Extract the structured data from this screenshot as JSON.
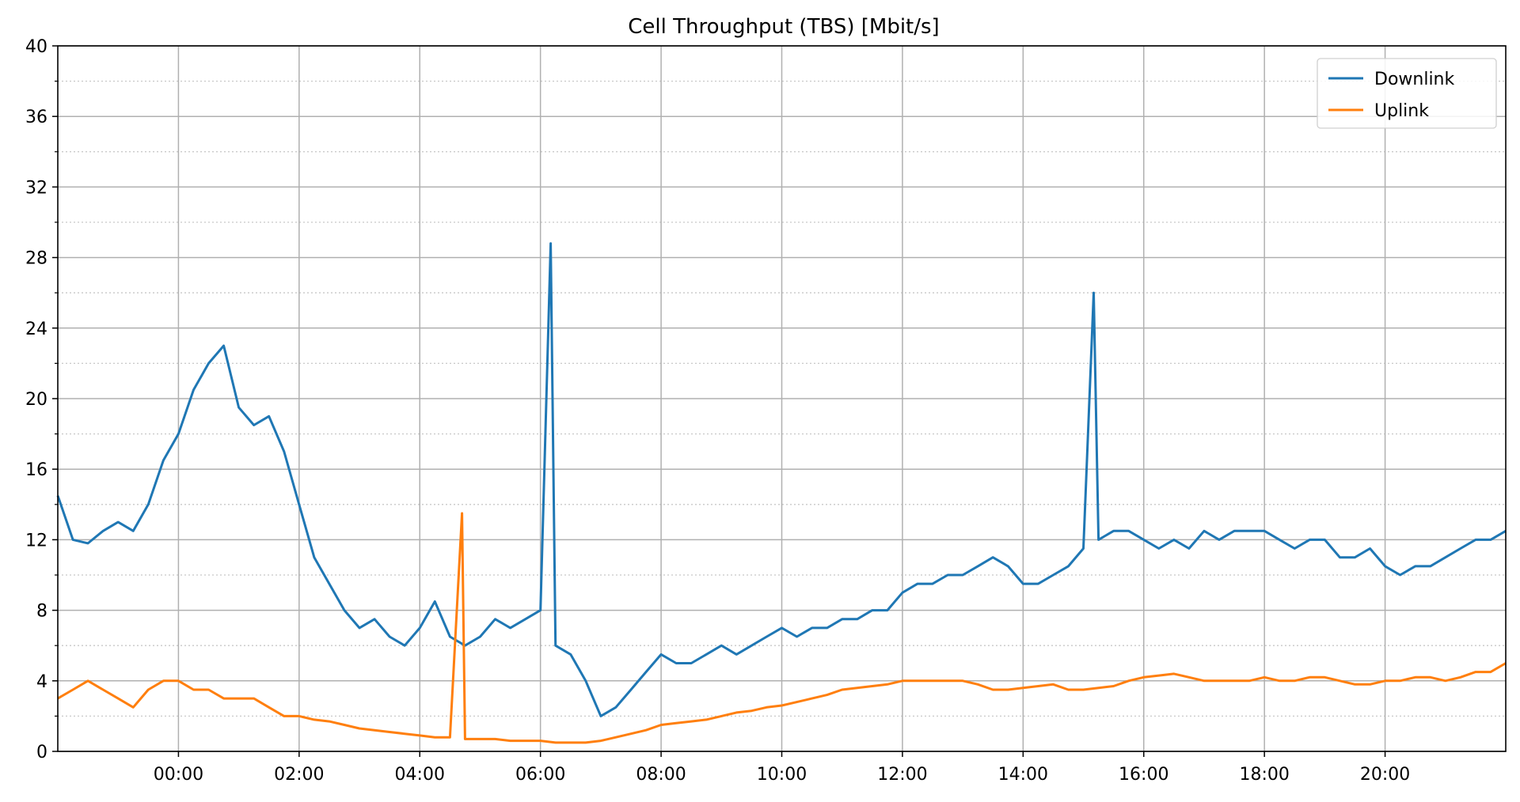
{
  "chart_data": {
    "type": "line",
    "title": "Cell Throughput (TBS) [Mbit/s]",
    "xlabel": "",
    "ylabel": "",
    "ylim": [
      0,
      40
    ],
    "xlim": [
      -2.0,
      22.0
    ],
    "yticks": [
      0,
      4,
      8,
      12,
      16,
      20,
      24,
      28,
      32,
      36,
      40
    ],
    "xticks": [
      {
        "value": 0,
        "label": "00:00"
      },
      {
        "value": 2,
        "label": "02:00"
      },
      {
        "value": 4,
        "label": "04:00"
      },
      {
        "value": 6,
        "label": "06:00"
      },
      {
        "value": 8,
        "label": "08:00"
      },
      {
        "value": 10,
        "label": "10:00"
      },
      {
        "value": 12,
        "label": "12:00"
      },
      {
        "value": 14,
        "label": "14:00"
      },
      {
        "value": 16,
        "label": "16:00"
      },
      {
        "value": 18,
        "label": "18:00"
      },
      {
        "value": 20,
        "label": "20:00"
      }
    ],
    "grid": true,
    "minor_grid": "dotted",
    "legend_position": "top-right",
    "x_unit": "hours",
    "series": [
      {
        "name": "Downlink",
        "color": "#1f77b4",
        "x": [
          -2.0,
          -1.75,
          -1.5,
          -1.25,
          -1.0,
          -0.75,
          -0.5,
          -0.25,
          0.0,
          0.25,
          0.5,
          0.75,
          1.0,
          1.25,
          1.5,
          1.75,
          2.0,
          2.25,
          2.5,
          2.75,
          3.0,
          3.25,
          3.5,
          3.75,
          4.0,
          4.25,
          4.5,
          4.75,
          5.0,
          5.25,
          5.5,
          5.75,
          6.0,
          6.17,
          6.25,
          6.5,
          6.75,
          7.0,
          7.25,
          7.5,
          7.75,
          8.0,
          8.25,
          8.5,
          8.75,
          9.0,
          9.25,
          9.5,
          9.75,
          10.0,
          10.25,
          10.5,
          10.75,
          11.0,
          11.25,
          11.5,
          11.75,
          12.0,
          12.25,
          12.5,
          12.75,
          13.0,
          13.25,
          13.5,
          13.75,
          14.0,
          14.25,
          14.5,
          14.75,
          15.0,
          15.17,
          15.25,
          15.5,
          15.75,
          16.0,
          16.25,
          16.5,
          16.75,
          17.0,
          17.25,
          17.5,
          17.75,
          18.0,
          18.25,
          18.5,
          18.75,
          19.0,
          19.25,
          19.5,
          19.75,
          20.0,
          20.25,
          20.5,
          20.75,
          21.0,
          21.25,
          21.5,
          21.75,
          22.0
        ],
        "y": [
          14.5,
          12.0,
          11.8,
          12.5,
          13.0,
          12.5,
          14.0,
          16.5,
          18.0,
          20.5,
          22.0,
          23.0,
          19.5,
          18.5,
          19.0,
          17.0,
          14.0,
          11.0,
          9.5,
          8.0,
          7.0,
          7.5,
          6.5,
          6.0,
          7.0,
          8.5,
          6.5,
          6.0,
          6.5,
          7.5,
          7.0,
          7.5,
          8.0,
          28.8,
          6.0,
          5.5,
          4.0,
          2.0,
          2.5,
          3.5,
          4.5,
          5.5,
          5.0,
          5.0,
          5.5,
          6.0,
          5.5,
          6.0,
          6.5,
          7.0,
          6.5,
          7.0,
          7.0,
          7.5,
          7.5,
          8.0,
          8.0,
          9.0,
          9.5,
          9.5,
          10.0,
          10.0,
          10.5,
          11.0,
          10.5,
          9.5,
          9.5,
          10.0,
          10.5,
          11.5,
          26.0,
          12.0,
          12.5,
          12.5,
          12.0,
          11.5,
          12.0,
          11.5,
          12.5,
          12.0,
          12.5,
          12.5,
          12.5,
          12.0,
          11.5,
          12.0,
          12.0,
          11.0,
          11.0,
          11.5,
          10.5,
          10.0,
          10.5,
          10.5,
          11.0,
          11.5,
          12.0,
          12.0,
          12.5
        ]
      },
      {
        "name": "Uplink",
        "color": "#ff7f0e",
        "x": [
          -2.0,
          -1.75,
          -1.5,
          -1.25,
          -1.0,
          -0.75,
          -0.5,
          -0.25,
          0.0,
          0.25,
          0.5,
          0.75,
          1.0,
          1.25,
          1.5,
          1.75,
          2.0,
          2.25,
          2.5,
          2.75,
          3.0,
          3.25,
          3.5,
          3.75,
          4.0,
          4.25,
          4.5,
          4.7,
          4.75,
          5.0,
          5.25,
          5.5,
          5.75,
          6.0,
          6.25,
          6.5,
          6.75,
          7.0,
          7.25,
          7.5,
          7.75,
          8.0,
          8.25,
          8.5,
          8.75,
          9.0,
          9.25,
          9.5,
          9.75,
          10.0,
          10.25,
          10.5,
          10.75,
          11.0,
          11.25,
          11.5,
          11.75,
          12.0,
          12.25,
          12.5,
          12.75,
          13.0,
          13.25,
          13.5,
          13.75,
          14.0,
          14.25,
          14.5,
          14.75,
          15.0,
          15.25,
          15.5,
          15.75,
          16.0,
          16.25,
          16.5,
          16.75,
          17.0,
          17.25,
          17.5,
          17.75,
          18.0,
          18.25,
          18.5,
          18.75,
          19.0,
          19.25,
          19.5,
          19.75,
          20.0,
          20.25,
          20.5,
          20.75,
          21.0,
          21.25,
          21.5,
          21.75,
          22.0
        ],
        "y": [
          3.0,
          3.5,
          4.0,
          3.5,
          3.0,
          2.5,
          3.5,
          4.0,
          4.0,
          3.5,
          3.5,
          3.0,
          3.0,
          3.0,
          2.5,
          2.0,
          2.0,
          1.8,
          1.7,
          1.5,
          1.3,
          1.2,
          1.1,
          1.0,
          0.9,
          0.8,
          0.8,
          13.5,
          0.7,
          0.7,
          0.7,
          0.6,
          0.6,
          0.6,
          0.5,
          0.5,
          0.5,
          0.6,
          0.8,
          1.0,
          1.2,
          1.5,
          1.6,
          1.7,
          1.8,
          2.0,
          2.2,
          2.3,
          2.5,
          2.6,
          2.8,
          3.0,
          3.2,
          3.5,
          3.6,
          3.7,
          3.8,
          4.0,
          4.0,
          4.0,
          4.0,
          4.0,
          3.8,
          3.5,
          3.5,
          3.6,
          3.7,
          3.8,
          3.5,
          3.5,
          3.6,
          3.7,
          4.0,
          4.2,
          4.3,
          4.4,
          4.2,
          4.0,
          4.0,
          4.0,
          4.0,
          4.2,
          4.0,
          4.0,
          4.2,
          4.2,
          4.0,
          3.8,
          3.8,
          4.0,
          4.0,
          4.2,
          4.2,
          4.0,
          4.2,
          4.5,
          4.5,
          5.0
        ]
      }
    ]
  }
}
